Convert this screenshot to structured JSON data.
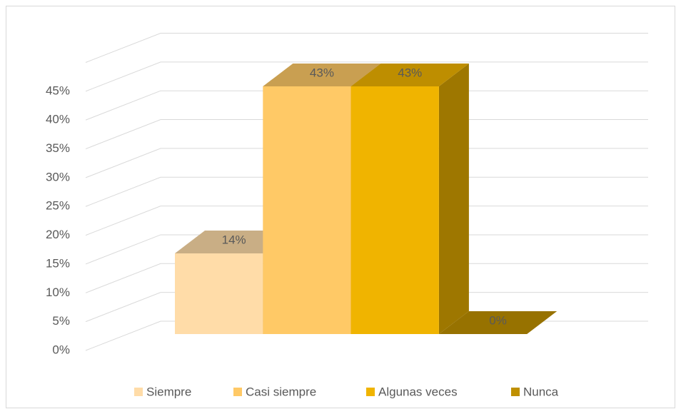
{
  "chart_data": {
    "type": "bar3d",
    "categories": [
      null
    ],
    "series": [
      {
        "name": "Siempre",
        "color": "#FFDCA8",
        "values": [
          14
        ],
        "value_labels": [
          "14%"
        ]
      },
      {
        "name": "Casi siempre",
        "color": "#FFC966",
        "values": [
          43
        ],
        "value_labels": [
          "43%"
        ]
      },
      {
        "name": "Algunas veces",
        "color": "#F0B400",
        "values": [
          43
        ],
        "value_labels": [
          "43%"
        ]
      },
      {
        "name": "Nunca",
        "color": "#BF9000",
        "values": [
          0
        ],
        "value_labels": [
          "0%"
        ]
      }
    ],
    "ylim": [
      0,
      50
    ],
    "yticks": [
      {
        "value": 0,
        "label": "0%"
      },
      {
        "value": 5,
        "label": "5%"
      },
      {
        "value": 10,
        "label": "10%"
      },
      {
        "value": 15,
        "label": "15%"
      },
      {
        "value": 20,
        "label": "20%"
      },
      {
        "value": 25,
        "label": "25%"
      },
      {
        "value": 30,
        "label": "30%"
      },
      {
        "value": 35,
        "label": "35%"
      },
      {
        "value": 40,
        "label": "40%"
      },
      {
        "value": 45,
        "label": "45%"
      }
    ],
    "grid": true,
    "legend": "bottom"
  }
}
